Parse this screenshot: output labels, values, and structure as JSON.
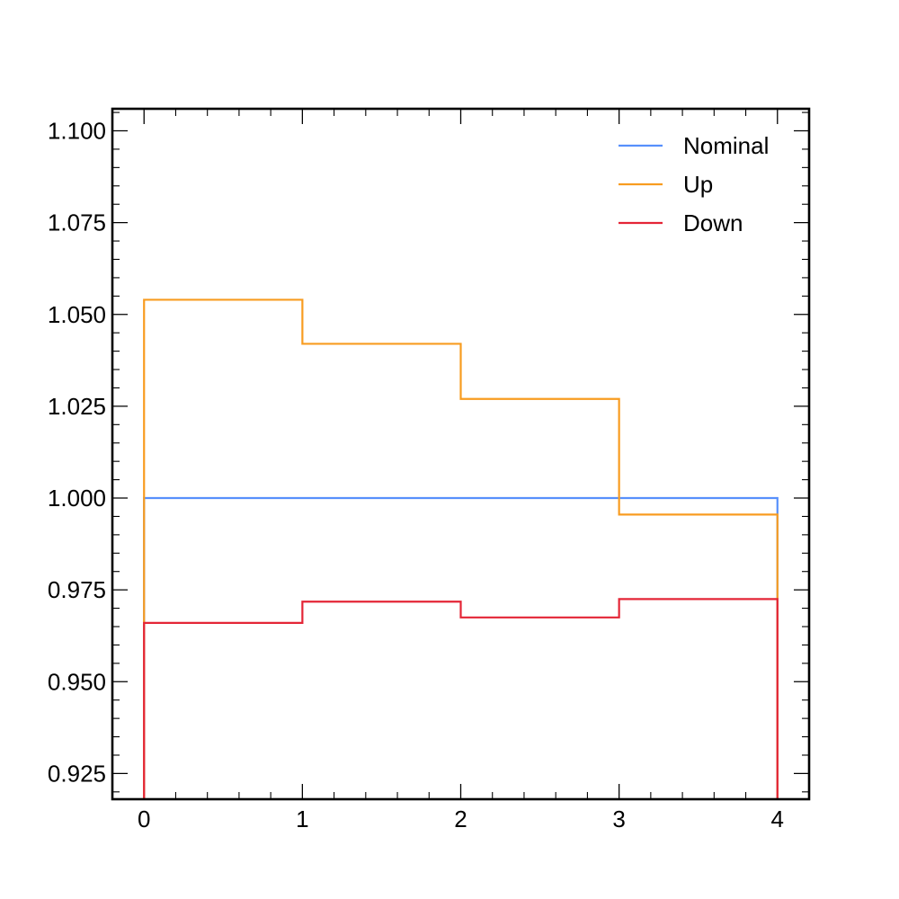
{
  "chart_data": {
    "type": "line",
    "drawstyle": "step-histogram",
    "bin_edges": [
      0,
      1,
      2,
      3,
      4
    ],
    "xlim": [
      -0.2,
      4.2
    ],
    "ylim": [
      0.918,
      1.106
    ],
    "xticks": [
      0,
      1,
      2,
      3,
      4
    ],
    "xtick_labels": [
      "0",
      "1",
      "2",
      "3",
      "4"
    ],
    "yticks": [
      0.925,
      0.95,
      0.975,
      1.0,
      1.025,
      1.05,
      1.075,
      1.1
    ],
    "ytick_labels": [
      "0.925",
      "0.950",
      "0.975",
      "1.000",
      "1.025",
      "1.050",
      "1.075",
      "1.100"
    ],
    "title": "",
    "xlabel": "",
    "ylabel": "",
    "grid": false,
    "legend_position": "top-right",
    "series": [
      {
        "name": "Nominal",
        "color": "#5790fc",
        "values": [
          1.0,
          1.0,
          1.0,
          1.0
        ]
      },
      {
        "name": "Up",
        "color": "#f89c20",
        "values": [
          1.054,
          1.042,
          1.027,
          0.9955
        ]
      },
      {
        "name": "Down",
        "color": "#e42536",
        "values": [
          0.966,
          0.9718,
          0.9675,
          0.9725
        ]
      }
    ]
  }
}
